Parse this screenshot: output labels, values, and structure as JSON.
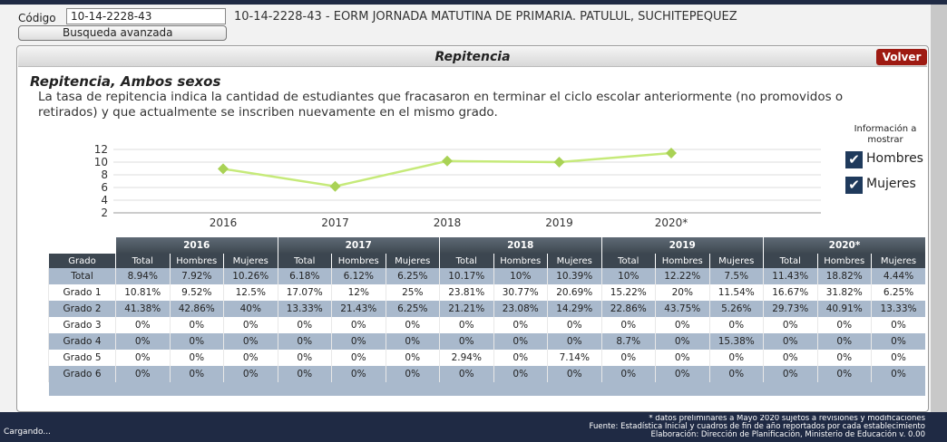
{
  "header": {
    "code_label": "Código",
    "code_value": "10-14-2228-43",
    "search_button": "Busqueda avanzada",
    "school": "10-14-2228-43 - EORM JORNADA MATUTINA DE PRIMARIA. PATULUL, SUCHITEPEQUEZ"
  },
  "panel": {
    "title": "Repitencia",
    "back_button": "Volver",
    "heading": "Repitencia, Ambos sexos",
    "description": "La tasa de repitencia indica la cantidad de estudiantes que fracasaron en terminar el ciclo escolar anteriormente (no promovidos o retirados) y que actualmente se inscriben nuevamente en el mismo grado."
  },
  "options": {
    "title": "Información a mostrar",
    "items": [
      "Hombres",
      "Mujeres"
    ]
  },
  "chart_data": {
    "type": "line",
    "categories": [
      "2016",
      "2017",
      "2018",
      "2019",
      "2020*"
    ],
    "values": [
      8.94,
      6.18,
      10.17,
      10,
      11.43
    ],
    "color": "#c6ea7a",
    "marker_color": "#a9d255",
    "ylim": [
      2,
      12
    ],
    "yticks": [
      2,
      4,
      6,
      8,
      10,
      12
    ],
    "grid": true
  },
  "table": {
    "columns": [
      "Grado",
      "Total",
      "Hombres",
      "Mujeres"
    ],
    "rows": [
      [
        "Total",
        "8.94%",
        "7.92%",
        "10.26%",
        "6.18%",
        "6.12%",
        "6.25%",
        "10.17%",
        "10%",
        "10.39%",
        "10%",
        "12.22%",
        "7.5%",
        "11.43%",
        "18.82%",
        "4.44%"
      ],
      [
        "Grado 1",
        "10.81%",
        "9.52%",
        "12.5%",
        "17.07%",
        "12%",
        "25%",
        "23.81%",
        "30.77%",
        "20.69%",
        "15.22%",
        "20%",
        "11.54%",
        "16.67%",
        "31.82%",
        "6.25%"
      ],
      [
        "Grado 2",
        "41.38%",
        "42.86%",
        "40%",
        "13.33%",
        "21.43%",
        "6.25%",
        "21.21%",
        "23.08%",
        "14.29%",
        "22.86%",
        "43.75%",
        "5.26%",
        "29.73%",
        "40.91%",
        "13.33%"
      ],
      [
        "Grado 3",
        "0%",
        "0%",
        "0%",
        "0%",
        "0%",
        "0%",
        "0%",
        "0%",
        "0%",
        "0%",
        "0%",
        "0%",
        "0%",
        "0%",
        "0%"
      ],
      [
        "Grado 4",
        "0%",
        "0%",
        "0%",
        "0%",
        "0%",
        "0%",
        "0%",
        "0%",
        "0%",
        "8.7%",
        "0%",
        "15.38%",
        "0%",
        "0%",
        "0%"
      ],
      [
        "Grado 5",
        "0%",
        "0%",
        "0%",
        "0%",
        "0%",
        "0%",
        "2.94%",
        "0%",
        "7.14%",
        "0%",
        "0%",
        "0%",
        "0%",
        "0%",
        "0%"
      ],
      [
        "Grado 6",
        "0%",
        "0%",
        "0%",
        "0%",
        "0%",
        "0%",
        "0%",
        "0%",
        "0%",
        "0%",
        "0%",
        "0%",
        "0%",
        "0%",
        "0%"
      ]
    ]
  },
  "footer": {
    "status": "Cargando...",
    "notes": [
      "* datos preliminares a Mayo 2020 sujetos a revisiones y modificaciones",
      "Fuente: Estadística Inicial y cuadros de fin de año reportados por cada establecimiento",
      "Elaboración: Dirección de Planificación, Ministerio de Educación v. 0.00"
    ]
  }
}
